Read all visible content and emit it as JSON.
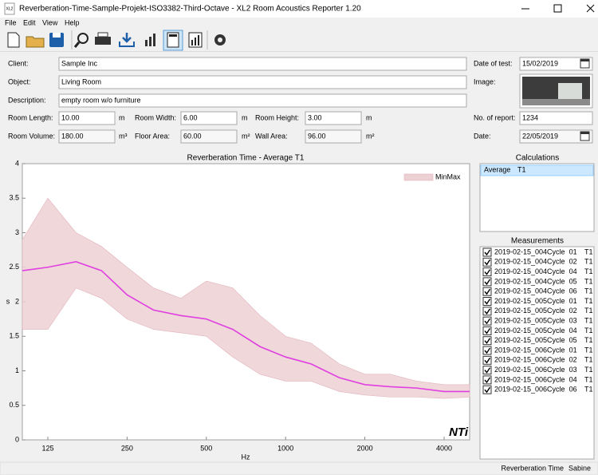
{
  "window": {
    "title": "Reverberation-Time-Sample-Projekt-ISO3382-Third-Octave - XL2 Room Acoustics Reporter 1.20"
  },
  "menu": [
    "File",
    "Edit",
    "View",
    "Help"
  ],
  "form": {
    "fields": [
      {
        "label": "Client:",
        "value": "Sample Inc"
      },
      {
        "label": "Object:",
        "value": "Living Room"
      },
      {
        "label": "Description:",
        "value": "empty room w/o furniture"
      }
    ],
    "dims": [
      {
        "label": "Room Length:",
        "value": "10.00",
        "unit": "m",
        "enabled": true
      },
      {
        "label": "Room Width:",
        "value": "6.00",
        "unit": "m",
        "enabled": true
      },
      {
        "label": "Room Height:",
        "value": "3.00",
        "unit": "m",
        "enabled": true
      },
      {
        "label": "Room Volume:",
        "value": "180.00",
        "unit": "m³",
        "enabled": false
      },
      {
        "label": "Floor Area:",
        "value": "60.00",
        "unit": "m²",
        "enabled": false
      },
      {
        "label": "Wall Area:",
        "value": "96.00",
        "unit": "m²",
        "enabled": false
      }
    ],
    "side": {
      "date_of_test": {
        "label": "Date of test:",
        "value": "15/02/2019"
      },
      "image": {
        "label": "Image:"
      },
      "report_no": {
        "label": "No. of report:",
        "value": "1234"
      },
      "date": {
        "label": "Date:",
        "value": "22/05/2019"
      }
    }
  },
  "chart_data": {
    "type": "line",
    "title": "Reverberation Time - Average T1",
    "x_label": "Hz",
    "y_label": "s",
    "x": [
      100,
      125,
      160,
      200,
      250,
      315,
      400,
      500,
      630,
      800,
      1000,
      1250,
      1600,
      2000,
      2500,
      3150,
      4000,
      5000
    ],
    "xlim": [
      100,
      5000
    ],
    "xticks": [
      125,
      250,
      500,
      1000,
      2000,
      4000
    ],
    "x_log": true,
    "ylim": [
      0,
      4
    ],
    "yticks": [
      0,
      0.5,
      1,
      1.5,
      2,
      2.5,
      3,
      3.5,
      4
    ],
    "grid": false,
    "series": [
      {
        "color": "#e040e0",
        "values": [
          2.45,
          2.5,
          2.58,
          2.45,
          2.1,
          1.88,
          1.8,
          1.75,
          1.6,
          1.35,
          1.2,
          1.1,
          0.9,
          0.8,
          0.77,
          0.75,
          0.7,
          0.7
        ]
      }
    ],
    "band": {
      "name": "MinMax",
      "color": "#ecd0d4",
      "min": [
        1.6,
        1.6,
        2.2,
        2.05,
        1.75,
        1.6,
        1.55,
        1.5,
        1.2,
        0.95,
        0.85,
        0.85,
        0.7,
        0.65,
        0.62,
        0.62,
        0.6,
        0.62
      ],
      "max": [
        2.9,
        3.5,
        3.0,
        2.8,
        2.5,
        2.2,
        2.05,
        2.3,
        2.2,
        1.8,
        1.5,
        1.4,
        1.1,
        0.95,
        0.95,
        0.85,
        0.8,
        0.8
      ]
    },
    "legend": "upper right",
    "logo": "NTi"
  },
  "calculations": {
    "title": "Calculations",
    "items": [
      {
        "name": "Average",
        "param": "T1"
      }
    ]
  },
  "measurements": {
    "title": "Measurements",
    "items": [
      {
        "name": "2019-02-15_004Cycle  01",
        "param": "T1",
        "checked": true
      },
      {
        "name": "2019-02-15_004Cycle  02",
        "param": "T1",
        "checked": true
      },
      {
        "name": "2019-02-15_004Cycle  04",
        "param": "T1",
        "checked": true
      },
      {
        "name": "2019-02-15_004Cycle  05",
        "param": "T1",
        "checked": true
      },
      {
        "name": "2019-02-15_004Cycle  06",
        "param": "T1",
        "checked": true
      },
      {
        "name": "2019-02-15_005Cycle  01",
        "param": "T1",
        "checked": true
      },
      {
        "name": "2019-02-15_005Cycle  02",
        "param": "T1",
        "checked": true
      },
      {
        "name": "2019-02-15_005Cycle  03",
        "param": "T1",
        "checked": true
      },
      {
        "name": "2019-02-15_005Cycle  04",
        "param": "T1",
        "checked": true
      },
      {
        "name": "2019-02-15_005Cycle  05",
        "param": "T1",
        "checked": true
      },
      {
        "name": "2019-02-15_006Cycle  01",
        "param": "T1",
        "checked": true
      },
      {
        "name": "2019-02-15_006Cycle  02",
        "param": "T1",
        "checked": true
      },
      {
        "name": "2019-02-15_006Cycle  03",
        "param": "T1",
        "checked": true
      },
      {
        "name": "2019-02-15_006Cycle  04",
        "param": "T1",
        "checked": true
      },
      {
        "name": "2019-02-15_006Cycle  06",
        "param": "T1",
        "checked": true
      }
    ]
  },
  "status": [
    "Reverberation Time",
    "Sabine"
  ]
}
